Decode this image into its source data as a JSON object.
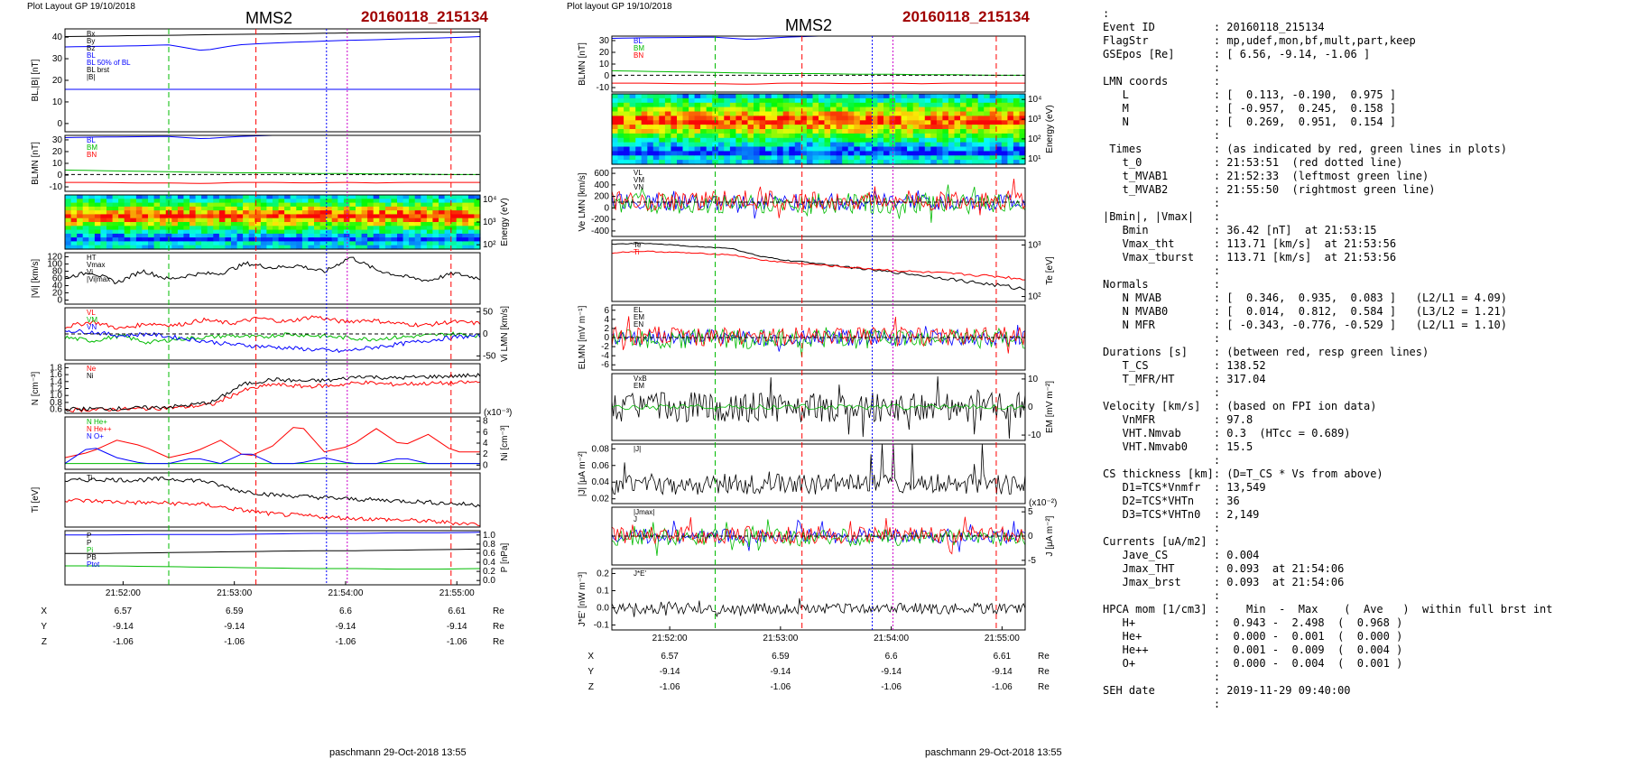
{
  "layout": {
    "left": {
      "header": "Plot Layout GP 19/10/2018",
      "spacecraft": "MMS2",
      "event": "20160118_215134",
      "footer": "paschmann 29-Oct-2018 13:55",
      "time_ticks": [
        "21:52:00",
        "21:53:00",
        "21:54:00",
        "21:55:00"
      ],
      "pos_rows": [
        {
          "label": "X",
          "values": [
            "6.57",
            "6.59",
            "6.6",
            "6.61"
          ],
          "unit": "Re"
        },
        {
          "label": "Y",
          "values": [
            "-9.14",
            "-9.14",
            "-9.14",
            "-9.14"
          ],
          "unit": "Re"
        },
        {
          "label": "Z",
          "values": [
            "-1.06",
            "-1.06",
            "-1.06",
            "-1.06"
          ],
          "unit": "Re"
        }
      ]
    },
    "right": {
      "header": "Plot layout GP 19/10/2018",
      "spacecraft": "MMS2",
      "event": "20160118_215134",
      "footer": "paschmann 29-Oct-2018 13:55",
      "time_ticks": [
        "21:52:00",
        "21:53:00",
        "21:54:00",
        "21:55:00"
      ],
      "pos_rows": [
        {
          "label": "X",
          "values": [
            "6.57",
            "6.59",
            "6.6",
            "6.61"
          ],
          "unit": "Re"
        },
        {
          "label": "Y",
          "values": [
            "-9.14",
            "-9.14",
            "-9.14",
            "-9.14"
          ],
          "unit": "Re"
        },
        {
          "label": "Z",
          "values": [
            "-1.06",
            "-1.06",
            "-1.06",
            "-1.06"
          ],
          "unit": "Re"
        }
      ]
    }
  },
  "chart_data": [
    {
      "type": "line",
      "panel": "left-1",
      "ylabel": "BL,|B| [nT]",
      "ylim": [
        0,
        40
      ],
      "yticks": [
        "0",
        "10",
        "20",
        "30",
        "40"
      ],
      "legend": [
        "Bx",
        "By",
        "Bz",
        "BL",
        "BL 50% of BL",
        "BL brst",
        "|B|"
      ],
      "series": [
        {
          "name": "|B|",
          "color": "#000000",
          "values": [
            37,
            37.2,
            37.4,
            37.5,
            37.7,
            37.9,
            38,
            38.2,
            38.4,
            38.5,
            38.6,
            38.7,
            38.8
          ]
        },
        {
          "name": "BL",
          "color": "#0000ff",
          "values": [
            33,
            33.2,
            33.4,
            33.8,
            31.5,
            33.8,
            34.5,
            35,
            35.5,
            35.8,
            36.2,
            36.5,
            37
          ]
        },
        {
          "name": "BL 50% of BL",
          "color": "#0000ff",
          "values": [
            16.5,
            16.5,
            16.5,
            16.5,
            16.5,
            16.5,
            16.5,
            16.5,
            16.5,
            16.5,
            16.5,
            16.5,
            16.5
          ]
        }
      ]
    },
    {
      "type": "line",
      "panel": "left-2",
      "ylabel": "BLMN [nT]",
      "ylim": [
        -15,
        35
      ],
      "yticks": [
        "-10",
        "0",
        "10",
        "20",
        "30"
      ],
      "legend": [
        "BL",
        "BM",
        "BN"
      ],
      "series": [
        {
          "name": "BL",
          "color": "#0000ff",
          "values": [
            33,
            33.5,
            33.8,
            34,
            32,
            34,
            35,
            35.5,
            36,
            36,
            36.5,
            36.8,
            37
          ]
        },
        {
          "name": "BM",
          "color": "#00bb00",
          "values": [
            4,
            3.5,
            3,
            2.5,
            2,
            1.5,
            1.5,
            1,
            1,
            0.5,
            0.5,
            0,
            0
          ]
        },
        {
          "name": "BN",
          "color": "#ff0000",
          "values": [
            -7,
            -7,
            -7.5,
            -7.5,
            -8,
            -7,
            -7,
            -7.5,
            -7,
            -7.5,
            -7,
            -7,
            -7
          ]
        }
      ]
    },
    {
      "type": "heatmap",
      "panel": "left-3",
      "ylabel": "Energy (eV)",
      "yticks": [
        "10²",
        "10³",
        "10⁴"
      ]
    },
    {
      "type": "line",
      "panel": "left-4",
      "ylabel": "|Vi| [km/s]",
      "ylim": [
        0,
        120
      ],
      "yticks": [
        "0",
        "20",
        "40",
        "60",
        "80",
        "100",
        "120"
      ],
      "legend": [
        "HT",
        "Vmax",
        "Vi",
        "|Vi|max"
      ],
      "series": [
        {
          "name": "|Vi|",
          "color": "#000000",
          "values": [
            62,
            75,
            50,
            78,
            58,
            70,
            72,
            95,
            85,
            90,
            75,
            110,
            80,
            65,
            55,
            72,
            60
          ]
        }
      ]
    },
    {
      "type": "line",
      "panel": "left-5",
      "ylabel": "Vi LMN [km/s]",
      "ylim": [
        -75,
        75
      ],
      "yticks": [
        "-50",
        "0",
        "50"
      ],
      "legend": [
        "VL",
        "VM",
        "VN"
      ],
      "series": [
        {
          "name": "VL",
          "color": "#ff0000",
          "values": [
            20,
            35,
            15,
            30,
            25,
            40,
            30,
            45,
            35,
            50,
            35,
            40,
            30,
            25,
            35,
            30
          ]
        },
        {
          "name": "VM",
          "color": "#00bb00",
          "values": [
            -10,
            -20,
            -5,
            -25,
            -15,
            -10,
            -5,
            -10,
            0,
            -5,
            -10,
            -15,
            -10,
            -5,
            0,
            -5
          ]
        },
        {
          "name": "VN",
          "color": "#0000ff",
          "values": [
            10,
            5,
            -5,
            0,
            -10,
            -20,
            -30,
            -35,
            -40,
            -45,
            -50,
            -40,
            -30,
            -20,
            -10,
            -5
          ]
        }
      ]
    },
    {
      "type": "line",
      "panel": "left-6",
      "ylabel": "N [cm⁻³]",
      "ylim": [
        0.6,
        1.8
      ],
      "yticks": [
        "0.6",
        "0.8",
        "1.0",
        "1.2",
        "1.4",
        "1.6",
        "1.8"
      ],
      "legend": [
        "Ne",
        "Ni"
      ],
      "series": [
        {
          "name": "Ne",
          "color": "#ff0000",
          "values": [
            0.68,
            0.69,
            0.7,
            0.72,
            0.75,
            0.82,
            1.15,
            1.3,
            1.25,
            1.27,
            1.35,
            1.3,
            1.32,
            1.33,
            1.36
          ]
        },
        {
          "name": "Ni",
          "color": "#000000",
          "values": [
            0.7,
            0.71,
            0.72,
            0.74,
            0.78,
            0.88,
            1.3,
            1.42,
            1.38,
            1.4,
            1.5,
            1.45,
            1.48,
            1.5,
            1.52
          ]
        }
      ]
    },
    {
      "type": "line",
      "panel": "left-7",
      "ylabel": "Ni [cm⁻³]",
      "ylim": [
        0,
        9
      ],
      "yticks": [
        "0",
        "2",
        "4",
        "6",
        "8"
      ],
      "y_multiplier": "(x10⁻³)",
      "legend": [
        "N He+",
        "N He++",
        "N O+"
      ],
      "series": [
        {
          "name": "N He+",
          "color": "#00bb00",
          "values": [
            1,
            1,
            1,
            1,
            1,
            1,
            1,
            1,
            1,
            1,
            1,
            1,
            1,
            1,
            1,
            1,
            1
          ]
        },
        {
          "name": "N He++",
          "color": "#ff0000",
          "values": [
            2,
            3,
            5,
            4,
            2,
            3,
            5,
            2,
            4,
            8,
            3,
            4,
            7,
            4,
            6,
            3,
            3
          ]
        },
        {
          "name": "N O+",
          "color": "#0000ff",
          "values": [
            1,
            4,
            2,
            1,
            1,
            2,
            1,
            3,
            1,
            1,
            2,
            1,
            1,
            2,
            1,
            1,
            1
          ]
        }
      ]
    },
    {
      "type": "line",
      "panel": "left-8",
      "ylabel": "Ti [eV]",
      "legend": [
        "Ti"
      ],
      "series": [
        {
          "name": "Ti",
          "color": "#000000",
          "values": [
            9,
            9.2,
            9.1,
            9.3,
            9,
            7.5,
            6.8,
            6.5,
            6.2,
            6,
            5.8,
            5.5,
            5.2
          ]
        },
        {
          "name": "",
          "color": "#ff0000",
          "values": [
            6,
            5.8,
            5.6,
            5.5,
            5.3,
            4.5,
            3.8,
            3.5,
            3.2,
            3,
            2.8,
            2.5,
            2.2
          ]
        }
      ]
    },
    {
      "type": "line",
      "panel": "left-9",
      "ylabel": "P [nPa]",
      "ylim": [
        0,
        1.0
      ],
      "yticks": [
        "0.0",
        "0.2",
        "0.4",
        "0.6",
        "0.8",
        "1.0"
      ],
      "legend": [
        "P",
        "P",
        "Pi",
        "PB",
        "Ptot"
      ],
      "series": [
        {
          "name": "Ptot",
          "color": "#0000ff",
          "values": [
            0.92,
            0.92,
            0.93,
            0.93,
            0.93,
            0.94,
            0.95,
            0.95,
            0.96,
            0.96,
            0.97
          ]
        },
        {
          "name": "PB",
          "color": "#000000",
          "values": [
            0.58,
            0.58,
            0.59,
            0.6,
            0.61,
            0.62,
            0.63,
            0.63,
            0.64,
            0.65,
            0.66
          ]
        },
        {
          "name": "Pi",
          "color": "#00bb00",
          "values": [
            0.35,
            0.35,
            0.34,
            0.33,
            0.32,
            0.31,
            0.3,
            0.3,
            0.29,
            0.29,
            0.3
          ]
        }
      ]
    },
    {
      "type": "line",
      "panel": "right-1",
      "ylabel": "BLMN [nT]",
      "ylim": [
        -15,
        35
      ],
      "yticks": [
        "-10",
        "0",
        "10",
        "20",
        "30"
      ],
      "legend": [
        "BL",
        "BM",
        "BN"
      ],
      "series": [
        {
          "name": "BL",
          "color": "#0000ff",
          "values": [
            33,
            33.5,
            33.8,
            34,
            32,
            34,
            35,
            35.5,
            36,
            36,
            36.5,
            36.8,
            37
          ]
        },
        {
          "name": "BM",
          "color": "#00bb00",
          "values": [
            4,
            3.5,
            3,
            2.5,
            2,
            1.5,
            1.5,
            1,
            1,
            0.5,
            0.5,
            0,
            0
          ]
        },
        {
          "name": "BN",
          "color": "#ff0000",
          "values": [
            -7,
            -7,
            -7.5,
            -7.5,
            -8,
            -7,
            -7,
            -7.5,
            -7,
            -7.5,
            -7,
            -7,
            -7
          ]
        }
      ]
    },
    {
      "type": "heatmap",
      "panel": "right-2",
      "ylabel": "Energy (eV)",
      "yticks": [
        "10¹",
        "10²",
        "10³",
        "10⁴"
      ]
    },
    {
      "type": "line",
      "panel": "right-3",
      "ylabel": "Ve LMN [km/s]",
      "ylim": [
        -500,
        600
      ],
      "yticks": [
        "-400",
        "-200",
        "0",
        "200",
        "400",
        "600"
      ],
      "legend": [
        "VL",
        "VM",
        "VN"
      ]
    },
    {
      "type": "line",
      "panel": "right-4",
      "ylabel": "Te [eV]",
      "yticks": [
        "10²",
        "10³"
      ],
      "legend": [
        "Te",
        "Ti"
      ],
      "series": [
        {
          "name": "Te",
          "color": "#000000",
          "values": [
            1000,
            1050,
            980,
            900,
            850,
            600,
            500,
            450,
            380,
            330,
            290,
            250,
            210,
            180,
            150
          ]
        },
        {
          "name": "Ti",
          "color": "#ff0000",
          "values": [
            700,
            750,
            720,
            680,
            650,
            520,
            460,
            420,
            380,
            350,
            320,
            300,
            280,
            260,
            230
          ]
        }
      ]
    },
    {
      "type": "line",
      "panel": "right-5",
      "ylabel": "ELMN [mV m⁻¹]",
      "ylim": [
        -7,
        7
      ],
      "yticks": [
        "-6",
        "-4",
        "-2",
        "0",
        "2",
        "4",
        "6"
      ],
      "legend": [
        "EL",
        "EM",
        "EN"
      ]
    },
    {
      "type": "line",
      "panel": "right-6",
      "ylabel": "EM [mV m⁻²]",
      "ylim": [
        -15,
        15
      ],
      "yticks": [
        "-10",
        "0",
        "10"
      ],
      "legend": [
        "VxB",
        "EM"
      ]
    },
    {
      "type": "line",
      "panel": "right-7",
      "ylabel": "|J| [μA m⁻²]",
      "ylim": [
        0,
        0.09
      ],
      "yticks": [
        "0.02",
        "0.04",
        "0.06",
        "0.08"
      ],
      "legend": [
        "|J|"
      ]
    },
    {
      "type": "line",
      "panel": "right-8",
      "ylabel": "J [μA m⁻²]",
      "ylim": [
        -7,
        7
      ],
      "yticks": [
        "-5",
        "0",
        "5"
      ],
      "y_multiplier": "(x10⁻²)",
      "legend": [
        "|Jmax|",
        "J"
      ]
    },
    {
      "type": "line",
      "panel": "right-9",
      "ylabel": "J*E' [nW m⁻³]",
      "ylim": [
        -0.12,
        0.22
      ],
      "yticks": [
        "-0.1",
        "0.0",
        "0.1",
        "0.2"
      ],
      "legend": [
        "J*E'"
      ]
    }
  ],
  "summary_lines": [
    ":",
    "Event ID         : 20160118_215134",
    "FlagStr          : mp,udef,mon,bf,mult,part,keep",
    "GSEpos [Re]      : [ 6.56, -9.14, -1.06 ]",
    "                 :",
    "LMN coords       :",
    "   L             : [  0.113, -0.190,  0.975 ]",
    "   M             : [ -0.957,  0.245,  0.158 ]",
    "   N             : [  0.269,  0.951,  0.154 ]",
    "                 :",
    " Times           : (as indicated by red, green lines in plots)",
    "   t_0           : 21:53:51  (red dotted line)",
    "   t_MVAB1       : 21:52:33  (leftmost green line)",
    "   t_MVAB2       : 21:55:50  (rightmost green line)",
    "                 :",
    "|Bmin|, |Vmax|   :",
    "   Bmin          : 36.42 [nT]  at 21:53:15",
    "   Vmax_tht      : 113.71 [km/s]  at 21:53:56",
    "   Vmax_tburst   : 113.71 [km/s]  at 21:53:56",
    "                 :",
    "Normals          :",
    "   N MVAB        : [  0.346,  0.935,  0.083 ]   (L2/L1 = 4.09)",
    "   N MVAB0       : [  0.014,  0.812,  0.584 ]   (L3/L2 = 1.21)",
    "   N MFR         : [ -0.343, -0.776, -0.529 ]   (L2/L1 = 1.10)",
    "                 :",
    "Durations [s]    : (between red, resp green lines)",
    "   T_CS          : 138.52",
    "   T_MFR/HT      : 317.04",
    "                 :",
    "Velocity [km/s]  : (based on FPI ion data)",
    "   VnMFR         : 97.8",
    "   VHT.Nmvab     : 0.3  (HTcc = 0.689)",
    "   VHT.Nmvab0    : 15.5",
    "                 :",
    "CS thickness [km]: (D=T_CS * Vs from above)",
    "   D1=TCS*Vnmfr  : 13,549",
    "   D2=TCS*VHTn   : 36",
    "   D3=TCS*VHTn0  : 2,149",
    "                 :",
    "Currents [uA/m2] :",
    "   Jave_CS       : 0.004",
    "   Jmax_THT      : 0.093  at 21:54:06",
    "   Jmax_brst     : 0.093  at 21:54:06",
    "                 :",
    "HPCA mom [1/cm3] :    Min  -  Max    (  Ave   )  within full brst int",
    "   H+            :  0.943 -  2.498  (  0.968 )",
    "   He+           :  0.000 -  0.001  (  0.000 )",
    "   He++          :  0.001 -  0.009  (  0.004 )",
    "   O+            :  0.000 -  0.004  (  0.001 )",
    "                 :",
    "SEH date         : 2019-11-29 09:40:00",
    "                 :"
  ]
}
